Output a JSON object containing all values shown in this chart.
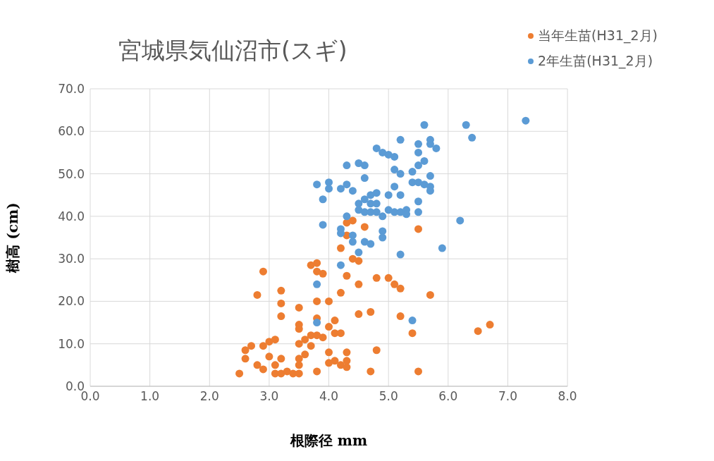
{
  "chart_data": {
    "type": "scatter",
    "title": "宮城県気仙沼市(スギ)",
    "xlabel": "根際径 mm",
    "ylabel": "樹高 (cm)",
    "xlim": [
      0,
      8
    ],
    "ylim": [
      0,
      70
    ],
    "xticks": [
      {
        "value": 0,
        "label": "0.0"
      },
      {
        "value": 1,
        "label": "1.0"
      },
      {
        "value": 2,
        "label": "2.0"
      },
      {
        "value": 3,
        "label": "3.0"
      },
      {
        "value": 4,
        "label": "4.0"
      },
      {
        "value": 5,
        "label": "5.0"
      },
      {
        "value": 6,
        "label": "6.0"
      },
      {
        "value": 7,
        "label": "7.0"
      },
      {
        "value": 8,
        "label": "8.0"
      }
    ],
    "yticks": [
      {
        "value": 0,
        "label": "0.0"
      },
      {
        "value": 10,
        "label": "10.0"
      },
      {
        "value": 20,
        "label": "20.0"
      },
      {
        "value": 30,
        "label": "30.0"
      },
      {
        "value": 40,
        "label": "40.0"
      },
      {
        "value": 50,
        "label": "50.0"
      },
      {
        "value": 60,
        "label": "60.0"
      },
      {
        "value": 70,
        "label": "70.0"
      }
    ],
    "grid": true,
    "legend": "top right",
    "marker": "circle",
    "series": [
      {
        "name": "当年生苗(H31_2月)",
        "color": "#ed7d31",
        "x": [
          2.5,
          2.6,
          2.6,
          2.7,
          2.8,
          2.8,
          2.9,
          2.9,
          2.9,
          3.0,
          3.0,
          3.1,
          3.1,
          3.1,
          3.2,
          3.2,
          3.2,
          3.2,
          3.2,
          3.3,
          3.4,
          3.5,
          3.5,
          3.5,
          3.5,
          3.5,
          3.5,
          3.5,
          3.6,
          3.6,
          3.7,
          3.7,
          3.7,
          3.8,
          3.8,
          3.8,
          3.8,
          3.8,
          3.8,
          3.9,
          3.9,
          4.0,
          4.0,
          4.0,
          4.0,
          4.1,
          4.1,
          4.1,
          4.2,
          4.2,
          4.2,
          4.2,
          4.3,
          4.3,
          4.3,
          4.3,
          4.3,
          4.4,
          4.4,
          4.3,
          4.5,
          4.5,
          4.5,
          4.6,
          4.7,
          4.7,
          4.8,
          4.8,
          5.0,
          5.1,
          5.2,
          5.2,
          5.4,
          5.5,
          5.5,
          5.7,
          6.5,
          6.7
        ],
        "values": [
          3,
          6.5,
          8.5,
          9.5,
          21.5,
          5,
          4,
          27,
          9.5,
          10.5,
          7,
          11,
          5,
          3,
          22.5,
          19.5,
          16.5,
          6.5,
          3,
          3.5,
          3,
          3,
          5,
          6.5,
          10,
          13.5,
          14.5,
          18.5,
          7.5,
          11,
          9.5,
          12,
          28.5,
          29,
          27,
          20,
          16,
          12,
          3.5,
          11.5,
          26.5,
          20,
          14,
          8,
          5.5,
          15.5,
          12.5,
          6,
          12.5,
          22,
          32.5,
          5,
          4.5,
          8,
          6,
          26,
          38.5,
          39,
          30,
          35.5,
          29.5,
          24,
          17,
          37.5,
          17.5,
          3.5,
          25.5,
          8.5,
          25.5,
          24,
          23,
          16.5,
          12.5,
          37,
          3.5,
          21.5,
          13,
          14.5
        ]
      },
      {
        "name": "2年生苗(H31_2月)",
        "color": "#5b9bd5",
        "x": [
          3.8,
          3.8,
          3.8,
          3.9,
          3.9,
          4.0,
          4.0,
          4.2,
          4.2,
          4.2,
          4.2,
          4.3,
          4.3,
          4.3,
          4.4,
          4.4,
          4.4,
          4.5,
          4.5,
          4.5,
          4.5,
          4.6,
          4.6,
          4.6,
          4.6,
          4.6,
          4.7,
          4.7,
          4.7,
          4.7,
          4.8,
          4.8,
          4.8,
          4.8,
          4.9,
          4.9,
          4.9,
          4.9,
          5.0,
          5.0,
          5.0,
          5.1,
          5.1,
          5.1,
          5.1,
          5.2,
          5.2,
          5.2,
          5.2,
          5.2,
          5.3,
          5.3,
          5.4,
          5.4,
          5.4,
          5.5,
          5.5,
          5.5,
          5.5,
          5.5,
          5.5,
          5.6,
          5.6,
          5.6,
          5.7,
          5.7,
          5.7,
          5.7,
          5.7,
          5.8,
          5.9,
          6.2,
          6.3,
          6.4,
          7.3
        ],
        "values": [
          47.5,
          24,
          15,
          44,
          38,
          48,
          46.5,
          46.5,
          37,
          36,
          28.5,
          52,
          47.5,
          40,
          46,
          35.5,
          34,
          52.5,
          43,
          41.5,
          31.5,
          52,
          49,
          44,
          41,
          34,
          45,
          43,
          41,
          33.5,
          56,
          45.5,
          41,
          43,
          55,
          40,
          36.5,
          35,
          54.5,
          45,
          41.5,
          54,
          51,
          47,
          41,
          58,
          50,
          45,
          41,
          31,
          41.5,
          40.5,
          50.5,
          48,
          15.5,
          57,
          55,
          52,
          48,
          43.5,
          41,
          61.5,
          53,
          47.5,
          58,
          57,
          49.5,
          47,
          46,
          56,
          32.5,
          39,
          61.5,
          58.5,
          62.5
        ]
      }
    ]
  }
}
